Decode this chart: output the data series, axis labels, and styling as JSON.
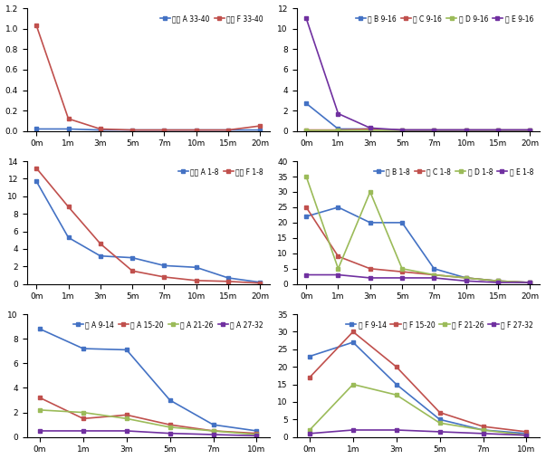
{
  "x_labels_8": [
    "0m",
    "1m",
    "3m",
    "5m",
    "7m",
    "10m",
    "15m",
    "20m"
  ],
  "x_labels_6": [
    "0m",
    "1m",
    "3m",
    "5m",
    "7m",
    "10m"
  ],
  "plot1": {
    "legend": [
      "남동 A 33-40",
      "복동 F 33-40"
    ],
    "colors": [
      "#4472C4",
      "#C0504D"
    ],
    "data": [
      [
        0.02,
        0.02,
        0.01,
        0.01,
        0.01,
        0.01,
        0.01,
        0.01
      ],
      [
        1.03,
        0.12,
        0.02,
        0.01,
        0.01,
        0.01,
        0.01,
        0.05
      ]
    ],
    "ylim": [
      0,
      1.2
    ],
    "yticks": [
      0,
      0.2,
      0.4,
      0.6,
      0.8,
      1.0,
      1.2
    ]
  },
  "plot2": {
    "legend": [
      "동 B 9-16",
      "동 C 9-16",
      "동 D 9-16",
      "동 E 9-16"
    ],
    "colors": [
      "#4472C4",
      "#C0504D",
      "#9BBB59",
      "#7030A0"
    ],
    "data": [
      [
        2.7,
        0.2,
        0.2,
        0.1,
        0.1,
        0.1,
        0.1,
        0.1
      ],
      [
        0.1,
        0.1,
        0.2,
        0.1,
        0.1,
        0.1,
        0.1,
        0.1
      ],
      [
        0.05,
        0.05,
        0.05,
        0.05,
        0.05,
        0.05,
        0.05,
        0.05
      ],
      [
        11.0,
        1.7,
        0.3,
        0.1,
        0.1,
        0.1,
        0.1,
        0.1
      ]
    ],
    "ylim": [
      0,
      12
    ],
    "yticks": [
      0,
      2,
      4,
      6,
      8,
      10,
      12
    ]
  },
  "plot3": {
    "legend": [
      "남서 A 1-8",
      "복서 F 1-8"
    ],
    "colors": [
      "#4472C4",
      "#C0504D"
    ],
    "data": [
      [
        11.7,
        5.3,
        3.2,
        3.0,
        2.1,
        1.9,
        0.7,
        0.2
      ],
      [
        13.2,
        8.8,
        4.6,
        1.5,
        0.8,
        0.4,
        0.3,
        0.1
      ]
    ],
    "ylim": [
      0,
      14
    ],
    "yticks": [
      0,
      2,
      4,
      6,
      8,
      10,
      12,
      14
    ]
  },
  "plot4": {
    "legend": [
      "서 B 1-8",
      "서 C 1-8",
      "서 D 1-8",
      "서 E 1-8"
    ],
    "colors": [
      "#4472C4",
      "#C0504D",
      "#9BBB59",
      "#7030A0"
    ],
    "data": [
      [
        22.0,
        25.0,
        20.0,
        20.0,
        5.0,
        2.0,
        1.0,
        0.5
      ],
      [
        25.0,
        9.0,
        5.0,
        4.0,
        3.0,
        2.0,
        1.0,
        0.5
      ],
      [
        35.0,
        5.0,
        30.0,
        5.0,
        3.0,
        2.0,
        1.0,
        0.5
      ],
      [
        3.0,
        3.0,
        2.0,
        2.0,
        2.0,
        1.0,
        0.5,
        0.5
      ]
    ],
    "ylim": [
      0,
      40
    ],
    "yticks": [
      0,
      5,
      10,
      15,
      20,
      25,
      30,
      35,
      40
    ]
  },
  "plot5": {
    "legend": [
      "남 A 9-14",
      "남 A 15-20",
      "남 A 21-26",
      "남 A 27-32"
    ],
    "colors": [
      "#4472C4",
      "#C0504D",
      "#9BBB59",
      "#7030A0"
    ],
    "data": [
      [
        8.8,
        7.2,
        7.1,
        3.0,
        1.0,
        0.5
      ],
      [
        3.2,
        1.5,
        1.8,
        1.0,
        0.5,
        0.3
      ],
      [
        2.2,
        2.0,
        1.5,
        0.8,
        0.5,
        0.2
      ],
      [
        0.5,
        0.5,
        0.5,
        0.3,
        0.2,
        0.1
      ]
    ],
    "ylim": [
      0,
      10
    ],
    "yticks": [
      0,
      2,
      4,
      6,
      8,
      10
    ]
  },
  "plot6": {
    "legend": [
      "복 F 9-14",
      "복 F 15-20",
      "복 F 21-26",
      "복 F 27-32"
    ],
    "colors": [
      "#4472C4",
      "#C0504D",
      "#9BBB59",
      "#7030A0"
    ],
    "data": [
      [
        23.0,
        27.0,
        15.0,
        5.0,
        2.0,
        1.0
      ],
      [
        17.0,
        30.0,
        20.0,
        7.0,
        3.0,
        1.5
      ],
      [
        2.0,
        15.0,
        12.0,
        4.0,
        2.0,
        0.5
      ],
      [
        1.0,
        2.0,
        2.0,
        1.5,
        1.0,
        0.5
      ]
    ],
    "ylim": [
      0,
      35
    ],
    "yticks": [
      0,
      5,
      10,
      15,
      20,
      25,
      30,
      35
    ]
  }
}
